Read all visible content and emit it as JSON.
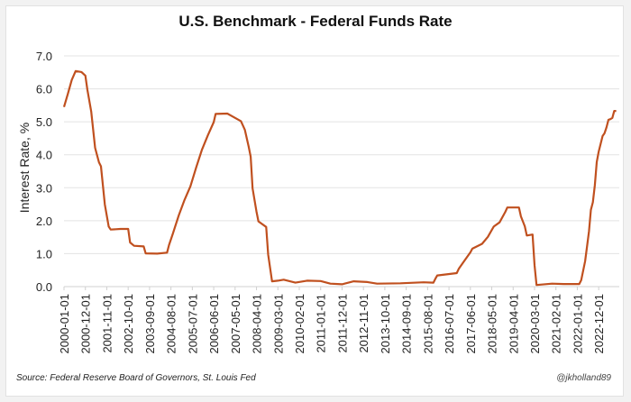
{
  "chart_data": {
    "type": "line",
    "title": "U.S. Benchmark - Federal Funds Rate",
    "xlabel": "",
    "ylabel": "Interest Rate, %",
    "ylim": [
      0,
      7
    ],
    "yticks": [
      "0.0",
      "1.0",
      "2.0",
      "3.0",
      "4.0",
      "5.0",
      "6.0",
      "7.0"
    ],
    "xticks": [
      "2000-01-01",
      "2000-12-01",
      "2001-11-01",
      "2002-10-01",
      "2003-09-01",
      "2004-08-01",
      "2005-07-01",
      "2006-06-01",
      "2007-05-01",
      "2008-04-01",
      "2009-03-01",
      "2010-02-01",
      "2011-01-01",
      "2011-12-01",
      "2012-11-01",
      "2013-10-01",
      "2014-09-01",
      "2015-08-01",
      "2016-07-01",
      "2017-06-01",
      "2018-05-01",
      "2019-04-01",
      "2020-03-01",
      "2021-02-01",
      "2022-01-01",
      "2022-12-01"
    ],
    "grid": true,
    "legend": "none",
    "line_color": "#c0501f",
    "series": [
      {
        "name": "Federal Funds Rate",
        "points": [
          [
            "2000-01-01",
            5.45
          ],
          [
            "2000-03-01",
            5.85
          ],
          [
            "2000-05-01",
            6.27
          ],
          [
            "2000-07-01",
            6.54
          ],
          [
            "2000-10-01",
            6.51
          ],
          [
            "2000-12-01",
            6.4
          ],
          [
            "2001-01-01",
            5.98
          ],
          [
            "2001-03-01",
            5.31
          ],
          [
            "2001-05-01",
            4.21
          ],
          [
            "2001-07-01",
            3.77
          ],
          [
            "2001-08-01",
            3.65
          ],
          [
            "2001-10-01",
            2.49
          ],
          [
            "2001-12-01",
            1.82
          ],
          [
            "2002-01-01",
            1.73
          ],
          [
            "2002-06-01",
            1.75
          ],
          [
            "2002-10-01",
            1.75
          ],
          [
            "2002-11-01",
            1.34
          ],
          [
            "2003-01-01",
            1.24
          ],
          [
            "2003-06-01",
            1.22
          ],
          [
            "2003-07-01",
            1.01
          ],
          [
            "2004-01-01",
            1.0
          ],
          [
            "2004-06-01",
            1.03
          ],
          [
            "2004-07-01",
            1.26
          ],
          [
            "2004-09-01",
            1.61
          ],
          [
            "2004-12-01",
            2.16
          ],
          [
            "2005-03-01",
            2.63
          ],
          [
            "2005-06-01",
            3.04
          ],
          [
            "2005-09-01",
            3.62
          ],
          [
            "2005-12-01",
            4.16
          ],
          [
            "2006-03-01",
            4.59
          ],
          [
            "2006-06-01",
            4.99
          ],
          [
            "2006-07-01",
            5.24
          ],
          [
            "2007-01-01",
            5.25
          ],
          [
            "2007-08-01",
            5.02
          ],
          [
            "2007-10-01",
            4.76
          ],
          [
            "2007-12-01",
            4.24
          ],
          [
            "2008-01-01",
            3.94
          ],
          [
            "2008-02-01",
            2.98
          ],
          [
            "2008-04-01",
            2.28
          ],
          [
            "2008-05-01",
            1.98
          ],
          [
            "2008-09-01",
            1.81
          ],
          [
            "2008-10-01",
            0.97
          ],
          [
            "2008-12-01",
            0.16
          ],
          [
            "2009-03-01",
            0.18
          ],
          [
            "2009-06-01",
            0.21
          ],
          [
            "2009-12-01",
            0.12
          ],
          [
            "2010-06-01",
            0.18
          ],
          [
            "2011-01-01",
            0.17
          ],
          [
            "2011-06-01",
            0.09
          ],
          [
            "2011-12-01",
            0.07
          ],
          [
            "2012-06-01",
            0.16
          ],
          [
            "2013-01-01",
            0.14
          ],
          [
            "2013-06-01",
            0.09
          ],
          [
            "2014-06-01",
            0.1
          ],
          [
            "2015-06-01",
            0.13
          ],
          [
            "2015-11-01",
            0.12
          ],
          [
            "2015-12-01",
            0.24
          ],
          [
            "2016-01-01",
            0.34
          ],
          [
            "2016-11-01",
            0.41
          ],
          [
            "2016-12-01",
            0.54
          ],
          [
            "2017-03-01",
            0.79
          ],
          [
            "2017-06-01",
            1.04
          ],
          [
            "2017-07-01",
            1.15
          ],
          [
            "2017-12-01",
            1.3
          ],
          [
            "2018-03-01",
            1.51
          ],
          [
            "2018-06-01",
            1.82
          ],
          [
            "2018-09-01",
            1.95
          ],
          [
            "2018-12-01",
            2.27
          ],
          [
            "2019-01-01",
            2.4
          ],
          [
            "2019-07-01",
            2.4
          ],
          [
            "2019-08-01",
            2.13
          ],
          [
            "2019-10-01",
            1.83
          ],
          [
            "2019-11-01",
            1.55
          ],
          [
            "2020-02-01",
            1.58
          ],
          [
            "2020-03-01",
            0.65
          ],
          [
            "2020-04-01",
            0.05
          ],
          [
            "2020-12-01",
            0.09
          ],
          [
            "2021-06-01",
            0.08
          ],
          [
            "2021-12-01",
            0.08
          ],
          [
            "2022-02-01",
            0.08
          ],
          [
            "2022-03-01",
            0.2
          ],
          [
            "2022-05-01",
            0.77
          ],
          [
            "2022-06-01",
            1.21
          ],
          [
            "2022-07-01",
            1.68
          ],
          [
            "2022-08-01",
            2.33
          ],
          [
            "2022-09-01",
            2.56
          ],
          [
            "2022-10-01",
            3.08
          ],
          [
            "2022-11-01",
            3.78
          ],
          [
            "2022-12-01",
            4.1
          ],
          [
            "2023-02-01",
            4.57
          ],
          [
            "2023-03-01",
            4.65
          ],
          [
            "2023-04-01",
            4.83
          ],
          [
            "2023-05-01",
            5.06
          ],
          [
            "2023-06-01",
            5.08
          ],
          [
            "2023-07-01",
            5.12
          ],
          [
            "2023-08-01",
            5.33
          ],
          [
            "2023-09-01",
            5.33
          ]
        ]
      }
    ]
  },
  "footer": {
    "source": "Source: Federal Reserve Board of Governors, St. Louis Fed",
    "handle": "@jkholland89"
  }
}
